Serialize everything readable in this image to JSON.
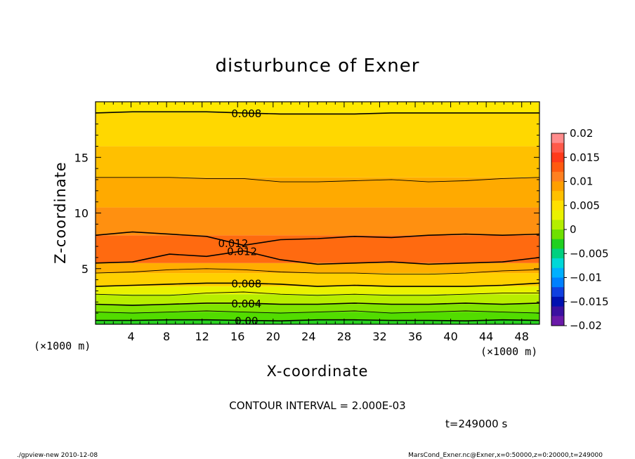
{
  "chart_data": {
    "type": "heatmap",
    "title": "disturbunce of Exner",
    "xlabel": "X-coordinate",
    "ylabel": "Z-coordinate",
    "x_unit": "(×1000 m)",
    "y_unit": "(×1000 m)",
    "xlim": [
      0,
      50
    ],
    "ylim": [
      0,
      20
    ],
    "x_ticks": [
      4,
      8,
      12,
      16,
      20,
      24,
      28,
      32,
      36,
      40,
      44,
      48
    ],
    "x_tick_labels": [
      "4",
      "8",
      "12",
      "16",
      "20",
      "24",
      "28",
      "32",
      "36",
      "40",
      "44",
      "48"
    ],
    "y_ticks": [
      5,
      10,
      15
    ],
    "y_tick_labels": [
      "5",
      "10",
      "15"
    ],
    "contour_interval": 0.002,
    "contour_interval_text": "CONTOUR INTERVAL = 2.000E-03",
    "time_text": "t=249000 s",
    "colorbar": {
      "range": [
        -0.02,
        0.02
      ],
      "ticks": [
        0.02,
        0.015,
        0.01,
        0.005,
        0,
        -0.005,
        -0.01,
        -0.015,
        -0.02
      ],
      "tick_labels": [
        "0.02",
        "0.015",
        "0.01",
        "0.005",
        "0",
        "−0.005",
        "−0.01",
        "−0.015",
        "−0.02"
      ],
      "colors": [
        "#ff8c8c",
        "#ff5a4a",
        "#ff3a1a",
        "#ff5a10",
        "#ff8020",
        "#ff9f00",
        "#ffc000",
        "#ffe000",
        "#eaf200",
        "#b4ee00",
        "#6ee000",
        "#20d020",
        "#00d080",
        "#00d8d8",
        "#00b0ff",
        "#0080ff",
        "#1040e0",
        "#0010b0",
        "#3a10a0",
        "#6a1aa8"
      ]
    },
    "contours": [
      {
        "value": 0.0,
        "label": "0.00",
        "z": [
          0.35,
          0.35,
          0.4,
          0.4,
          0.35,
          0.3,
          0.4,
          0.4,
          0.35,
          0.35,
          0.3,
          0.4,
          0.35
        ]
      },
      {
        "value": 0.002,
        "label": "",
        "z": [
          1.1,
          1.0,
          1.1,
          1.2,
          1.1,
          1.0,
          1.1,
          1.2,
          1.0,
          1.1,
          1.2,
          1.1,
          1.0
        ]
      },
      {
        "value": 0.004,
        "label": "0.004",
        "z": [
          1.8,
          1.7,
          1.8,
          1.9,
          1.9,
          1.8,
          1.8,
          1.9,
          1.8,
          1.8,
          1.9,
          1.8,
          1.9
        ]
      },
      {
        "value": 0.006,
        "label": "",
        "z": [
          2.7,
          2.6,
          2.6,
          2.8,
          2.9,
          2.7,
          2.6,
          2.7,
          2.6,
          2.6,
          2.7,
          2.8,
          2.8
        ]
      },
      {
        "value": 0.008,
        "label": "0.008",
        "z": [
          3.4,
          3.5,
          3.6,
          3.7,
          3.7,
          3.6,
          3.4,
          3.5,
          3.4,
          3.4,
          3.4,
          3.5,
          3.7
        ]
      },
      {
        "value": 0.01,
        "label": "",
        "z": [
          4.6,
          4.7,
          4.9,
          5.0,
          4.9,
          4.7,
          4.6,
          4.6,
          4.5,
          4.5,
          4.6,
          4.8,
          4.9
        ]
      },
      {
        "value": 0.012,
        "label": "0.012",
        "z": [
          5.5,
          5.6,
          6.3,
          6.1,
          6.6,
          5.8,
          5.4,
          5.5,
          5.6,
          5.4,
          5.5,
          5.6,
          6.0
        ]
      },
      {
        "value": 0.012,
        "label": "0.012",
        "z": [
          8.0,
          8.3,
          8.1,
          7.9,
          7.1,
          7.6,
          7.7,
          7.9,
          7.8,
          8.0,
          8.1,
          8.0,
          8.1
        ]
      },
      {
        "value": 0.01,
        "label": "",
        "z": [
          13.2,
          13.2,
          13.2,
          13.1,
          13.1,
          12.8,
          12.8,
          12.9,
          13.0,
          12.8,
          12.9,
          13.1,
          13.2
        ]
      },
      {
        "value": 0.008,
        "label": "0.008",
        "z": [
          19.0,
          19.1,
          19.1,
          19.1,
          19.0,
          18.9,
          18.9,
          18.9,
          19.0,
          19.0,
          19.0,
          19.0,
          19.0
        ]
      }
    ],
    "fill_bands": [
      {
        "z_low": 0.0,
        "z_high": 0.35,
        "color": "#28d020"
      },
      {
        "z_low": 0.35,
        "z_high": 1.1,
        "color": "#52dc00"
      },
      {
        "z_low": 1.1,
        "z_high": 1.8,
        "color": "#80e400"
      },
      {
        "z_low": 1.8,
        "z_high": 2.7,
        "color": "#b8ee00"
      },
      {
        "z_low": 2.7,
        "z_high": 3.4,
        "color": "#eaf200"
      },
      {
        "z_low": 3.4,
        "z_high": 4.6,
        "color": "#ffd000"
      },
      {
        "z_low": 4.6,
        "z_high": 5.5,
        "color": "#ffae00"
      },
      {
        "z_low": 5.5,
        "z_high": 8.0,
        "color": "#ff6a10"
      },
      {
        "z_low": 8.0,
        "z_high": 10.5,
        "color": "#ff9010"
      },
      {
        "z_low": 10.5,
        "z_high": 13.2,
        "color": "#ffaa00"
      },
      {
        "z_low": 13.2,
        "z_high": 16.0,
        "color": "#ffc000"
      },
      {
        "z_low": 16.0,
        "z_high": 19.0,
        "color": "#ffd800"
      },
      {
        "z_low": 19.0,
        "z_high": 20.0,
        "color": "#ffe800"
      }
    ]
  },
  "footer": {
    "left": "./gpview-new   2010-12-08",
    "right": "MarsCond_Exner.nc@Exner,x=0:50000,z=0:20000,t=249000"
  }
}
